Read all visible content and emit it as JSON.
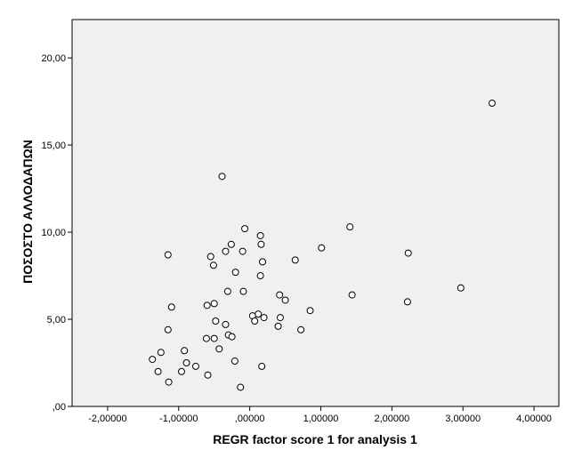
{
  "chart_data": {
    "type": "scatter",
    "xlabel": "REGR factor score   1 for analysis 1",
    "ylabel": "ΠΟΣΟΣΤΟ ΑΛΛΟΔΑΠΩΝ",
    "xlim": [
      -2.5,
      4.35
    ],
    "ylim": [
      0,
      22.2
    ],
    "x_ticks": [
      -2.0,
      -1.0,
      0.0,
      1.0,
      2.0,
      3.0,
      4.0
    ],
    "x_tick_labels": [
      "-2,00000",
      "-1,00000",
      ",00000",
      "1,00000",
      "2,00000",
      "3,00000",
      "4,00000"
    ],
    "y_ticks": [
      0,
      5,
      10,
      15,
      20
    ],
    "y_tick_labels": [
      ",00",
      "5,00",
      "10,00",
      "15,00",
      "20,00"
    ],
    "grid": false,
    "legend": "none",
    "colors": {
      "plot_background": "#f0f0f0",
      "marker_stroke": "#000000",
      "marker_fill": "#ffffff",
      "axis": "#000000"
    },
    "points": [
      {
        "x": 3.41,
        "y": 17.4
      },
      {
        "x": -0.39,
        "y": 13.2
      },
      {
        "x": -0.07,
        "y": 10.2
      },
      {
        "x": 1.41,
        "y": 10.3
      },
      {
        "x": 0.15,
        "y": 9.8
      },
      {
        "x": -0.26,
        "y": 9.3
      },
      {
        "x": 0.16,
        "y": 9.3
      },
      {
        "x": 1.01,
        "y": 9.1
      },
      {
        "x": -0.34,
        "y": 8.9
      },
      {
        "x": -0.1,
        "y": 8.9
      },
      {
        "x": -1.15,
        "y": 8.7
      },
      {
        "x": 2.23,
        "y": 8.8
      },
      {
        "x": -0.55,
        "y": 8.6
      },
      {
        "x": 0.64,
        "y": 8.4
      },
      {
        "x": 0.18,
        "y": 8.3
      },
      {
        "x": -0.51,
        "y": 8.1
      },
      {
        "x": -0.2,
        "y": 7.7
      },
      {
        "x": 0.15,
        "y": 7.5
      },
      {
        "x": -0.31,
        "y": 6.6
      },
      {
        "x": -0.09,
        "y": 6.6
      },
      {
        "x": 0.42,
        "y": 6.4
      },
      {
        "x": 1.44,
        "y": 6.4
      },
      {
        "x": 2.97,
        "y": 6.8
      },
      {
        "x": 0.5,
        "y": 6.1
      },
      {
        "x": 2.22,
        "y": 6.0
      },
      {
        "x": -1.1,
        "y": 5.7
      },
      {
        "x": -0.6,
        "y": 5.8
      },
      {
        "x": -0.5,
        "y": 5.9
      },
      {
        "x": 0.85,
        "y": 5.5
      },
      {
        "x": 0.04,
        "y": 5.2
      },
      {
        "x": 0.12,
        "y": 5.3
      },
      {
        "x": 0.2,
        "y": 5.1
      },
      {
        "x": 0.43,
        "y": 5.1
      },
      {
        "x": -0.48,
        "y": 4.9
      },
      {
        "x": 0.07,
        "y": 4.9
      },
      {
        "x": -0.34,
        "y": 4.7
      },
      {
        "x": 0.4,
        "y": 4.6
      },
      {
        "x": -1.15,
        "y": 4.4
      },
      {
        "x": 0.72,
        "y": 4.4
      },
      {
        "x": -0.3,
        "y": 4.1
      },
      {
        "x": -0.25,
        "y": 4.0
      },
      {
        "x": -0.61,
        "y": 3.9
      },
      {
        "x": -0.5,
        "y": 3.9
      },
      {
        "x": -0.43,
        "y": 3.3
      },
      {
        "x": -0.92,
        "y": 3.2
      },
      {
        "x": -1.25,
        "y": 3.1
      },
      {
        "x": -1.37,
        "y": 2.7
      },
      {
        "x": -0.21,
        "y": 2.6
      },
      {
        "x": -0.89,
        "y": 2.5
      },
      {
        "x": -0.76,
        "y": 2.3
      },
      {
        "x": 0.17,
        "y": 2.3
      },
      {
        "x": -1.29,
        "y": 2.0
      },
      {
        "x": -0.96,
        "y": 2.0
      },
      {
        "x": -0.59,
        "y": 1.8
      },
      {
        "x": -1.14,
        "y": 1.4
      },
      {
        "x": -0.13,
        "y": 1.1
      }
    ]
  }
}
